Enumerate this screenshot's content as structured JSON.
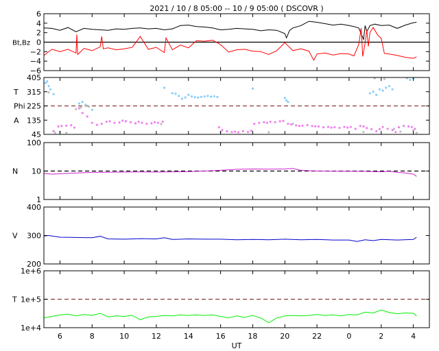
{
  "chart_data": {
    "type": "line",
    "title": "2021 / 10 /  8   05:00  -- 10 /  9   05:00 ( DSCOVR )",
    "xlabel": "UT",
    "x_tick_labels": [
      "6",
      "8",
      "10",
      "12",
      "14",
      "16",
      "18",
      "20",
      "22",
      "0",
      "2",
      "4"
    ],
    "x_tick_hours": [
      6,
      8,
      10,
      12,
      14,
      16,
      18,
      20,
      22,
      24,
      26,
      28
    ],
    "x_range_hours": [
      5,
      29
    ],
    "panels": [
      {
        "id": "bfield",
        "ylabel": "Bt,Bz",
        "ylim": [
          -6,
          6
        ],
        "scale": "linear",
        "tick_labels": [
          "6",
          "4",
          "2",
          "0",
          "−2",
          "−4",
          "−6"
        ],
        "tick_values": [
          6,
          4,
          2,
          0,
          -2,
          -4,
          -6
        ],
        "reference_lines": [
          {
            "value": 0,
            "color": "#000000",
            "dash": "solid"
          }
        ],
        "series": [
          {
            "color": "#000000",
            "x": [
              5.0,
              5.5,
              6.0,
              6.5,
              7.0,
              7.5,
              8.0,
              8.5,
              9.0,
              9.5,
              10.0,
              10.5,
              11.0,
              11.5,
              12.0,
              12.5,
              13.0,
              13.5,
              14.0,
              14.5,
              15.0,
              15.5,
              16.0,
              16.5,
              17.0,
              17.5,
              18.0,
              18.5,
              19.0,
              19.5,
              20.0,
              20.1,
              20.3,
              20.5,
              21.0,
              21.5,
              22.0,
              22.5,
              23.0,
              23.5,
              24.0,
              24.3,
              24.6,
              24.9,
              25.0,
              25.1,
              25.3,
              25.6,
              26.0,
              26.5,
              27.0,
              27.5,
              28.0,
              28.2
            ],
            "y": [
              3.0,
              2.9,
              2.5,
              3.1,
              2.2,
              2.9,
              2.7,
              2.6,
              2.5,
              2.8,
              2.7,
              2.9,
              3.0,
              2.8,
              2.9,
              2.6,
              2.8,
              3.5,
              3.6,
              3.3,
              3.2,
              3.0,
              2.6,
              2.7,
              2.9,
              2.8,
              2.7,
              2.4,
              2.6,
              2.5,
              1.8,
              0.9,
              2.5,
              3.0,
              3.5,
              4.4,
              4.2,
              3.9,
              3.6,
              3.8,
              3.5,
              3.3,
              3.0,
              0.6,
              3.5,
              2.2,
              3.5,
              3.8,
              3.5,
              3.6,
              2.9,
              3.6,
              4.1,
              4.2
            ]
          },
          {
            "color": "#ff0000",
            "x": [
              5.0,
              5.5,
              6.0,
              6.5,
              7.0,
              7.05,
              7.1,
              7.5,
              8.0,
              8.5,
              8.6,
              8.7,
              9.0,
              9.5,
              10.0,
              10.5,
              11.0,
              11.5,
              12.0,
              12.5,
              12.6,
              13.0,
              13.5,
              14.0,
              14.5,
              15.0,
              15.5,
              16.0,
              16.5,
              17.0,
              17.5,
              18.0,
              18.5,
              19.0,
              19.5,
              20.0,
              20.5,
              21.0,
              21.5,
              21.8,
              22.0,
              22.5,
              23.0,
              23.5,
              24.0,
              24.3,
              24.6,
              24.75,
              24.85,
              25.0,
              25.1,
              25.2,
              25.3,
              25.5,
              25.8,
              26.0,
              26.2,
              26.5,
              27.0,
              27.5,
              28.0,
              28.2
            ],
            "y": [
              -2.8,
              -1.5,
              -2.0,
              -1.5,
              -2.3,
              1.6,
              -2.6,
              -1.3,
              -1.8,
              -1.0,
              1.2,
              -1.4,
              -1.2,
              -1.6,
              -1.4,
              -1.1,
              1.2,
              -1.5,
              -1.1,
              -2.2,
              0.9,
              -1.6,
              -0.6,
              -1.2,
              0.3,
              0.2,
              0.4,
              -0.5,
              -2.1,
              -1.6,
              -1.5,
              -1.9,
              -2.0,
              -2.6,
              -1.8,
              -0.1,
              -1.8,
              -1.4,
              -1.9,
              -3.8,
              -2.5,
              -2.3,
              -2.7,
              -2.4,
              -2.5,
              -2.9,
              -0.5,
              3.0,
              -3.0,
              -0.2,
              2.6,
              -0.9,
              2.1,
              3.1,
              1.4,
              0.8,
              -2.4,
              -2.5,
              -2.8,
              -3.2,
              -3.4,
              -3.1
            ]
          }
        ]
      },
      {
        "id": "temp_phi",
        "ylabels": [
          "T",
          "Phi",
          "A"
        ],
        "ylim": [
          45,
          405
        ],
        "scale": "linear",
        "tick_labels": [
          "405",
          "315",
          "225",
          "135",
          "45"
        ],
        "tick_values": [
          405,
          315,
          225,
          135,
          45
        ],
        "reference_lines": [
          {
            "value": 225,
            "color": "#8b3a3a",
            "dash": "dashed"
          }
        ],
        "series": [
          {
            "color": "#87cefa",
            "mode": "scatter",
            "x": [
              5.1,
              5.2,
              5.3,
              5.4,
              5.6,
              7.2,
              7.4,
              7.6,
              8.0,
              12.5,
              13.0,
              13.2,
              13.4,
              13.6,
              13.8,
              14.0,
              14.2,
              14.4,
              14.6,
              14.8,
              15.0,
              15.2,
              15.4,
              15.6,
              15.8,
              18.0,
              20.0,
              20.1,
              20.2,
              25.3,
              25.5,
              25.7,
              25.9,
              26.1,
              26.3,
              26.5,
              26.7,
              27.8,
              28.0
            ],
            "y": [
              370,
              380,
              350,
              330,
              300,
              240,
              250,
              232,
              200,
              340,
              305,
              302,
              288,
              270,
              278,
              295,
              285,
              280,
              278,
              282,
              285,
              288,
              283,
              286,
              282,
              335,
              275,
              260,
              250,
              305,
              315,
              295,
              330,
              322,
              340,
              350,
              330,
              390,
              400
            ]
          },
          {
            "color": "#ee82ee",
            "mode": "scatter",
            "x": [
              5.6,
              5.9,
              6.1,
              6.4,
              6.7,
              6.9,
              7.2,
              7.4,
              7.7,
              8.0,
              8.3,
              8.6,
              8.9,
              9.1,
              9.4,
              9.7,
              9.9,
              10.1,
              10.4,
              10.7,
              10.9,
              11.1,
              11.4,
              11.7,
              11.9,
              12.1,
              12.4,
              15.9,
              16.1,
              16.4,
              16.7,
              16.9,
              17.1,
              17.4,
              17.7,
              17.9,
              18.1,
              18.4,
              18.7,
              18.9,
              19.1,
              19.4,
              19.7,
              19.9,
              20.2,
              20.4,
              20.7,
              20.9,
              21.1,
              21.4,
              21.7,
              21.9,
              22.1,
              22.4,
              22.7,
              22.9,
              23.1,
              23.4,
              23.7,
              23.9,
              24.1,
              24.4,
              24.7,
              24.9,
              25.1,
              25.4,
              25.7,
              25.9,
              26.1,
              26.4,
              26.7,
              26.9,
              27.1,
              27.4,
              27.7,
              27.9,
              28.1
            ],
            "y": [
              65,
              95,
              98,
              100,
              103,
              88,
              210,
              180,
              158,
              118,
              105,
              112,
              125,
              128,
              118,
              120,
              132,
              128,
              122,
              115,
              125,
              118,
              112,
              115,
              122,
              118,
              125,
              90,
              72,
              65,
              60,
              62,
              58,
              65,
              60,
              68,
              112,
              118,
              122,
              118,
              125,
              122,
              128,
              130,
              112,
              108,
              102,
              98,
              100,
              104,
              98,
              96,
              95,
              90,
              92,
              88,
              90,
              86,
              92,
              88,
              92,
              80,
              98,
              95,
              85,
              78,
              65,
              78,
              92,
              80,
              72,
              60,
              90,
              98,
              95,
              92,
              80
            ]
          },
          {
            "color": "#bebebe",
            "mode": "scatter",
            "x": [
              5.3,
              5.7,
              6.0,
              6.4,
              7.0,
              7.3,
              7.6,
              7.8,
              12.3,
              16.0,
              19.0,
              20.5,
              24.9,
              25.6,
              26.2,
              26.8,
              27.2,
              27.6,
              28.0,
              28.2
            ],
            "y": [
              310,
              55,
              60,
              55,
              205,
              215,
              225,
              220,
              110,
              60,
              58,
              112,
              60,
              400,
              395,
              80,
              62,
              400,
              70,
              55
            ]
          }
        ]
      },
      {
        "id": "density",
        "ylabel": "N",
        "ylim": [
          1,
          100
        ],
        "scale": "log",
        "tick_labels": [
          "100",
          "10",
          "1"
        ],
        "tick_values": [
          100,
          10,
          1
        ],
        "reference_lines": [
          {
            "value": 10,
            "color": "#000000",
            "dash": "dashed"
          }
        ],
        "series": [
          {
            "color": "#cc22cc",
            "x": [
              5.0,
              5.5,
              6.0,
              7.0,
              8.0,
              9.0,
              10.0,
              11.0,
              12.0,
              13.0,
              14.0,
              15.0,
              16.0,
              17.0,
              18.0,
              19.0,
              20.0,
              20.5,
              21.0,
              22.0,
              23.0,
              24.0,
              25.0,
              26.0,
              26.5,
              27.0,
              27.5,
              28.0,
              28.2
            ],
            "y": [
              8.2,
              7.8,
              8.0,
              8.5,
              9.0,
              9.1,
              9.2,
              9.3,
              9.2,
              9.4,
              9.5,
              10.0,
              10.6,
              11.5,
              11.8,
              11.7,
              11.9,
              12.3,
              10.6,
              10.0,
              9.9,
              9.8,
              9.7,
              9.4,
              9.8,
              9.0,
              8.5,
              7.8,
              6.5
            ]
          }
        ]
      },
      {
        "id": "velocity",
        "ylabel": "V",
        "ylim": [
          200,
          400
        ],
        "scale": "linear",
        "tick_labels": [
          "400",
          "300",
          "200"
        ],
        "tick_values": [
          400,
          300,
          200
        ],
        "reference_lines": [],
        "series": [
          {
            "color": "#0000cc",
            "x": [
              5.0,
              5.3,
              6.0,
              7.0,
              8.0,
              8.5,
              9.0,
              10.0,
              11.0,
              12.0,
              12.5,
              13.0,
              14.0,
              15.0,
              16.0,
              17.0,
              18.0,
              19.0,
              20.0,
              21.0,
              22.0,
              23.0,
              24.0,
              24.5,
              25.0,
              25.5,
              26.0,
              27.0,
              28.0,
              28.2
            ],
            "y": [
              298,
              300,
              294,
              293,
              292,
              297,
              288,
              287,
              289,
              288,
              292,
              286,
              288,
              287,
              287,
              285,
              286,
              285,
              287,
              285,
              286,
              284,
              284,
              279,
              285,
              282,
              286,
              284,
              286,
              294
            ]
          }
        ]
      },
      {
        "id": "temperature",
        "ylabel": "T",
        "ylim": [
          10000,
          1000000
        ],
        "scale": "log",
        "tick_labels": [
          "1e+6",
          "1e+5",
          "1e+4"
        ],
        "tick_values": [
          1000000,
          100000,
          10000
        ],
        "reference_lines": [
          {
            "value": 100000,
            "color": "#8b3a3a",
            "dash": "dashed"
          }
        ],
        "series": [
          {
            "color": "#00ee00",
            "x": [
              5.0,
              5.5,
              6.0,
              6.5,
              7.0,
              7.5,
              8.0,
              8.5,
              9.0,
              9.5,
              10.0,
              10.5,
              11.0,
              11.5,
              12.0,
              12.5,
              13.0,
              13.5,
              14.0,
              14.5,
              15.0,
              15.5,
              16.0,
              16.5,
              17.0,
              17.5,
              18.0,
              18.5,
              19.0,
              19.5,
              20.0,
              20.5,
              21.0,
              21.5,
              22.0,
              22.5,
              23.0,
              23.5,
              24.0,
              24.5,
              25.0,
              25.5,
              26.0,
              26.5,
              27.0,
              27.5,
              28.0,
              28.2
            ],
            "y": [
              22000,
              25000,
              28000,
              30000,
              26000,
              29000,
              27000,
              32000,
              24000,
              26000,
              25000,
              27000,
              19000,
              24000,
              25000,
              27000,
              26000,
              28000,
              27000,
              28000,
              27000,
              28000,
              25000,
              22000,
              26000,
              23000,
              27000,
              22000,
              15000,
              22000,
              26000,
              27000,
              26000,
              27000,
              29000,
              27000,
              28000,
              26000,
              29000,
              28000,
              35000,
              33000,
              42000,
              34000,
              31000,
              33000,
              32000,
              26000
            ]
          }
        ]
      }
    ]
  }
}
